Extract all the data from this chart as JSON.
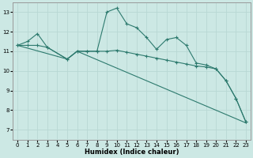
{
  "xlabel": "Humidex (Indice chaleur)",
  "bg_color": "#cce8e4",
  "line_color": "#2d7a6e",
  "grid_color": "#b8d8d4",
  "xlim": [
    -0.5,
    23.5
  ],
  "ylim": [
    6.5,
    13.5
  ],
  "yticks": [
    7,
    8,
    9,
    10,
    11,
    12,
    13
  ],
  "xticks": [
    0,
    1,
    2,
    3,
    4,
    5,
    6,
    7,
    8,
    9,
    10,
    11,
    12,
    13,
    14,
    15,
    16,
    17,
    18,
    19,
    20,
    21,
    22,
    23
  ],
  "line1_x": [
    0,
    1,
    2,
    3,
    5,
    6,
    7,
    8,
    9,
    10,
    11,
    12,
    13,
    14,
    15,
    16,
    17,
    18,
    19,
    20,
    21,
    22,
    23
  ],
  "line1_y": [
    11.3,
    11.5,
    11.9,
    11.2,
    10.6,
    11.0,
    11.0,
    11.0,
    13.0,
    13.2,
    12.4,
    12.2,
    11.7,
    11.1,
    11.6,
    11.7,
    11.3,
    10.4,
    10.3,
    10.1,
    9.5,
    8.6,
    7.4
  ],
  "line2_x": [
    0,
    1,
    2,
    3,
    5,
    6,
    7,
    8,
    9,
    10,
    11,
    12,
    13,
    14,
    15,
    16,
    17,
    18,
    19,
    20,
    21,
    22,
    23
  ],
  "line2_y": [
    11.3,
    11.3,
    11.3,
    11.2,
    10.6,
    11.0,
    11.0,
    11.0,
    11.0,
    11.05,
    10.95,
    10.85,
    10.75,
    10.65,
    10.55,
    10.45,
    10.35,
    10.25,
    10.2,
    10.1,
    9.5,
    8.6,
    7.4
  ],
  "line3_x": [
    0,
    5,
    6,
    23
  ],
  "line3_y": [
    11.3,
    10.6,
    11.0,
    7.35
  ]
}
